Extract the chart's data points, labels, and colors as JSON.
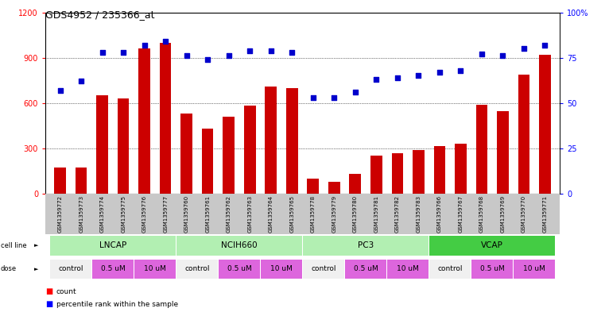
{
  "title": "GDS4952 / 235366_at",
  "samples": [
    "GSM1359772",
    "GSM1359773",
    "GSM1359774",
    "GSM1359775",
    "GSM1359776",
    "GSM1359777",
    "GSM1359760",
    "GSM1359761",
    "GSM1359762",
    "GSM1359763",
    "GSM1359764",
    "GSM1359765",
    "GSM1359778",
    "GSM1359779",
    "GSM1359780",
    "GSM1359781",
    "GSM1359782",
    "GSM1359783",
    "GSM1359766",
    "GSM1359767",
    "GSM1359768",
    "GSM1359769",
    "GSM1359770",
    "GSM1359771"
  ],
  "counts": [
    170,
    170,
    650,
    630,
    960,
    1000,
    530,
    430,
    510,
    580,
    710,
    700,
    100,
    75,
    130,
    250,
    265,
    290,
    315,
    330,
    590,
    545,
    790,
    920
  ],
  "percentiles": [
    57,
    62,
    78,
    78,
    82,
    84,
    76,
    74,
    76,
    79,
    79,
    78,
    53,
    53,
    56,
    63,
    64,
    65,
    67,
    68,
    77,
    76,
    80,
    82
  ],
  "bar_color": "#cc0000",
  "dot_color": "#0000cc",
  "ylim_left": [
    0,
    1200
  ],
  "ylim_right": [
    0,
    100
  ],
  "yticks_left": [
    0,
    300,
    600,
    900,
    1200
  ],
  "yticks_right": [
    0,
    25,
    50,
    75,
    100
  ],
  "grid_values": [
    300,
    600,
    900
  ],
  "bg_color": "#ffffff",
  "sample_bg_color": "#c8c8c8",
  "cell_line_groups": [
    {
      "name": "LNCAP",
      "start": 0,
      "end": 6,
      "color": "#b2efb2"
    },
    {
      "name": "NCIH660",
      "start": 6,
      "end": 12,
      "color": "#b2efb2"
    },
    {
      "name": "PC3",
      "start": 12,
      "end": 18,
      "color": "#b2efb2"
    },
    {
      "name": "VCAP",
      "start": 18,
      "end": 24,
      "color": "#44cc44"
    }
  ],
  "dose_groups": [
    {
      "name": "control",
      "start": 0,
      "end": 2,
      "color": "#f0f0f0"
    },
    {
      "name": "0.5 uM",
      "start": 2,
      "end": 4,
      "color": "#dd66dd"
    },
    {
      "name": "10 uM",
      "start": 4,
      "end": 6,
      "color": "#dd66dd"
    },
    {
      "name": "control",
      "start": 6,
      "end": 8,
      "color": "#f0f0f0"
    },
    {
      "name": "0.5 uM",
      "start": 8,
      "end": 10,
      "color": "#dd66dd"
    },
    {
      "name": "10 uM",
      "start": 10,
      "end": 12,
      "color": "#dd66dd"
    },
    {
      "name": "control",
      "start": 12,
      "end": 14,
      "color": "#f0f0f0"
    },
    {
      "name": "0.5 uM",
      "start": 14,
      "end": 16,
      "color": "#dd66dd"
    },
    {
      "name": "10 uM",
      "start": 16,
      "end": 18,
      "color": "#dd66dd"
    },
    {
      "name": "control",
      "start": 18,
      "end": 20,
      "color": "#f0f0f0"
    },
    {
      "name": "0.5 uM",
      "start": 20,
      "end": 22,
      "color": "#dd66dd"
    },
    {
      "name": "10 uM",
      "start": 22,
      "end": 24,
      "color": "#dd66dd"
    }
  ]
}
